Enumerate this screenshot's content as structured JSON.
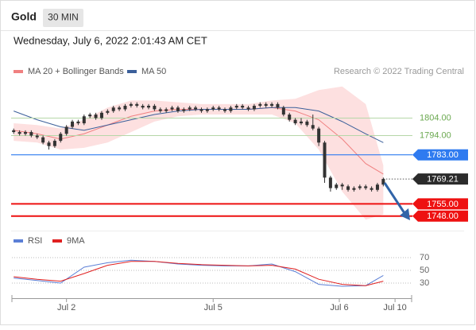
{
  "header": {
    "title": "Gold",
    "interval": "30 MIN",
    "timestamp": "Wednesday, July 6, 2022 2:01:43 AM CET"
  },
  "chart_data": [
    {
      "type": "candlestick",
      "source": "Research © 2022 Trading Central",
      "candle_color": "#333333",
      "xlim": [
        -0.3,
        68.1
      ],
      "ylim": [
        1742,
        1826
      ],
      "open": [
        1797,
        1796,
        1795,
        1796,
        1794,
        1793,
        1790,
        1788,
        1791,
        1795,
        1799,
        1802,
        1801,
        1805,
        1806,
        1804,
        1807,
        1808,
        1810,
        1809,
        1811,
        1812,
        1811,
        1810,
        1811,
        1809,
        1808,
        1809,
        1810,
        1808,
        1809,
        1810,
        1809,
        1808,
        1809,
        1810,
        1809,
        1808,
        1810,
        1811,
        1810,
        1809,
        1811,
        1812,
        1811,
        1812,
        1810,
        1806,
        1803,
        1801,
        1802,
        1800,
        1798,
        1790,
        1770,
        1764,
        1766,
        1765,
        1763,
        1764,
        1765,
        1764,
        1763,
        1766
      ],
      "high": [
        1798,
        1797,
        1797,
        1797,
        1795,
        1794,
        1791,
        1792,
        1796,
        1800,
        1803,
        1803,
        1806,
        1807,
        1807,
        1808,
        1809,
        1811,
        1811,
        1812,
        1813,
        1813,
        1812,
        1812,
        1812,
        1810,
        1810,
        1811,
        1811,
        1810,
        1811,
        1811,
        1810,
        1810,
        1811,
        1811,
        1810,
        1811,
        1812,
        1812,
        1811,
        1812,
        1813,
        1813,
        1813,
        1813,
        1811,
        1807,
        1804,
        1804,
        1803,
        1806,
        1799,
        1791,
        1771,
        1767,
        1767,
        1766,
        1765,
        1766,
        1766,
        1765,
        1767,
        1770
      ],
      "low": [
        1795,
        1794,
        1794,
        1793,
        1792,
        1789,
        1786,
        1787,
        1790,
        1794,
        1798,
        1800,
        1800,
        1804,
        1803,
        1803,
        1806,
        1807,
        1808,
        1808,
        1810,
        1810,
        1809,
        1809,
        1808,
        1807,
        1807,
        1808,
        1807,
        1807,
        1808,
        1808,
        1807,
        1807,
        1808,
        1808,
        1807,
        1807,
        1809,
        1809,
        1808,
        1808,
        1810,
        1810,
        1810,
        1809,
        1805,
        1802,
        1800,
        1800,
        1799,
        1797,
        1788,
        1767,
        1762,
        1763,
        1763,
        1762,
        1762,
        1763,
        1763,
        1762,
        1762,
        1765
      ],
      "close": [
        1796,
        1795,
        1796,
        1794,
        1793,
        1790,
        1788,
        1791,
        1795,
        1799,
        1802,
        1801,
        1805,
        1806,
        1804,
        1807,
        1808,
        1810,
        1809,
        1811,
        1812,
        1811,
        1810,
        1811,
        1809,
        1808,
        1809,
        1810,
        1808,
        1809,
        1810,
        1809,
        1808,
        1809,
        1810,
        1809,
        1808,
        1810,
        1811,
        1810,
        1809,
        1811,
        1812,
        1811,
        1812,
        1810,
        1806,
        1803,
        1801,
        1802,
        1800,
        1798,
        1790,
        1770,
        1764,
        1766,
        1765,
        1763,
        1764,
        1765,
        1764,
        1763,
        1766,
        1769.21
      ],
      "series": [
        {
          "name": "MA 20 + Bollinger Bands",
          "color": "#f08080",
          "band_color": "#fde0e0",
          "x": [
            0,
            4,
            8,
            12,
            16,
            20,
            24,
            28,
            32,
            36,
            40,
            44,
            48,
            52,
            56,
            60,
            63
          ],
          "values": [
            1797,
            1795,
            1792,
            1795,
            1800,
            1805,
            1808,
            1809,
            1809,
            1809,
            1809,
            1810,
            1808,
            1803,
            1792,
            1778,
            1772
          ],
          "upper": [
            1801,
            1800,
            1798,
            1803,
            1810,
            1814,
            1814,
            1813,
            1812,
            1812,
            1812,
            1814,
            1815,
            1820,
            1822,
            1812,
            1777
          ],
          "lower": [
            1791,
            1790,
            1786,
            1787,
            1790,
            1796,
            1802,
            1805,
            1806,
            1806,
            1806,
            1806,
            1801,
            1786,
            1762,
            1746,
            1749
          ]
        },
        {
          "name": "MA 50",
          "color": "#3b5f9a",
          "x": [
            0,
            4,
            8,
            12,
            16,
            20,
            24,
            28,
            32,
            36,
            40,
            44,
            48,
            52,
            56,
            60,
            63
          ],
          "values": [
            1808,
            1803,
            1799,
            1797,
            1800,
            1803,
            1806,
            1808,
            1809,
            1809,
            1809,
            1810,
            1810,
            1808,
            1802,
            1795,
            1790
          ]
        }
      ],
      "levels": [
        {
          "value": 1804,
          "label": "1804.00",
          "color": "#6aa84f",
          "line_color": "#b6d7a8",
          "boxed": false,
          "line_style": "solid",
          "line_width": 1
        },
        {
          "value": 1794,
          "label": "1794.00",
          "color": "#6aa84f",
          "line_color": "#b6d7a8",
          "boxed": false,
          "line_style": "solid",
          "line_width": 1
        },
        {
          "value": 1783,
          "label": "1783.00",
          "color": "#2f7bf0",
          "line_color": "#2f7bf0",
          "boxed": true,
          "line_style": "solid",
          "line_width": 1.2
        },
        {
          "value": 1769.21,
          "label": "1769.21",
          "color": "#2b2b2b",
          "line_color": "#555555",
          "boxed": true,
          "line_style": "dotted",
          "line_width": 1
        },
        {
          "value": 1755,
          "label": "1755.00",
          "color": "#ee1111",
          "line_color": "#ee1111",
          "boxed": true,
          "line_style": "solid",
          "line_width": 2
        },
        {
          "value": 1748,
          "label": "1748.00",
          "color": "#ee1111",
          "line_color": "#ee1111",
          "boxed": true,
          "line_style": "solid",
          "line_width": 2
        }
      ]
    },
    {
      "type": "line",
      "xlim": [
        -0.3,
        68.1
      ],
      "ylim": [
        20,
        85
      ],
      "yticks": [
        70,
        50,
        30
      ],
      "xticks": [
        {
          "value": 9,
          "label": "Jul 2"
        },
        {
          "value": 34,
          "label": "Jul 5"
        },
        {
          "value": 55.5,
          "label": "Jul 6"
        },
        {
          "value": 65,
          "label": "Jul 10"
        }
      ],
      "series": [
        {
          "name": "RSI",
          "color": "#5b7fd6",
          "x": [
            0,
            4,
            8,
            12,
            16,
            20,
            24,
            28,
            32,
            36,
            40,
            44,
            48,
            52,
            56,
            60,
            63
          ],
          "values": [
            38,
            34,
            30,
            55,
            62,
            66,
            64,
            60,
            58,
            57,
            57,
            60,
            48,
            28,
            25,
            26,
            42
          ]
        },
        {
          "name": "9MA",
          "color": "#e02020",
          "x": [
            0,
            4,
            8,
            12,
            16,
            20,
            24,
            28,
            32,
            36,
            40,
            44,
            48,
            52,
            56,
            60,
            63
          ],
          "values": [
            40,
            36,
            33,
            45,
            58,
            64,
            64,
            61,
            59,
            58,
            57,
            58,
            52,
            36,
            28,
            26,
            33
          ]
        }
      ]
    }
  ]
}
